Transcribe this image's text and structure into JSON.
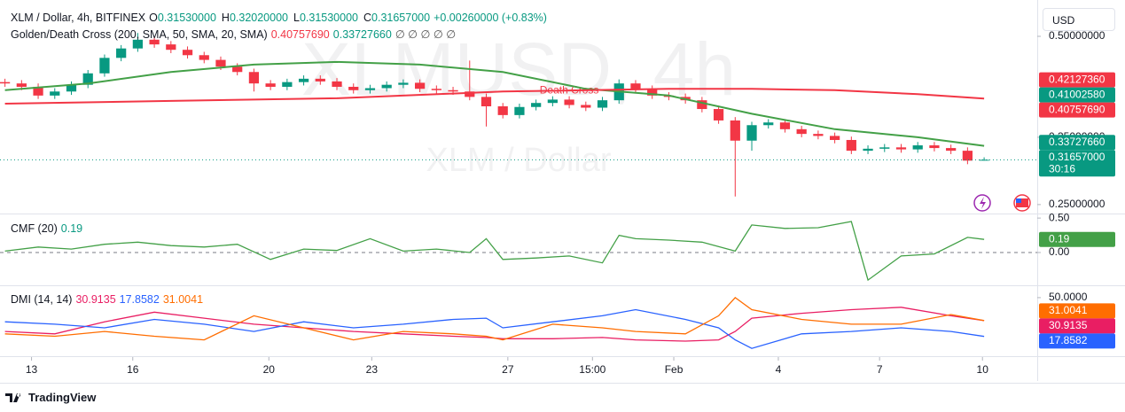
{
  "header": {
    "symbol": "XLM / Dollar, 4h, BITFINEX",
    "ohlc": [
      {
        "key": "O",
        "label": "0.31530000"
      },
      {
        "key": "H",
        "label": "0.32020000"
      },
      {
        "key": "L",
        "label": "0.31530000"
      },
      {
        "key": "C",
        "label": "0.31657000"
      }
    ],
    "change": "+0.00260000 (+0.83%)",
    "currency": "USD",
    "brand": "TradingView"
  },
  "chart_data": [
    {
      "type": "candlestick",
      "title": "Golden/Death Cross (200, SMA, 50, SMA, 20, SMA)",
      "status_icons": "∅ ∅ ∅ ∅ ∅",
      "watermark": "XLMUSD, 4h",
      "watermark_subtitle": "XLM / Dollar",
      "up_color": "#089981",
      "down_color": "#f23645",
      "x": [
        0,
        1,
        2,
        3,
        4,
        5,
        6,
        7,
        8,
        9,
        10,
        11,
        12,
        13,
        14,
        15,
        16,
        17,
        18,
        19,
        20,
        21,
        22,
        23,
        24,
        25,
        26,
        27,
        28,
        29,
        30,
        31,
        32,
        33,
        34,
        35,
        36,
        37,
        38,
        39,
        40,
        41,
        42,
        43,
        44,
        45,
        46,
        47,
        48,
        49,
        50,
        51,
        52,
        53,
        54,
        55,
        56,
        57,
        58,
        59
      ],
      "open": [
        0.432,
        0.43,
        0.425,
        0.412,
        0.418,
        0.428,
        0.445,
        0.468,
        0.482,
        0.495,
        0.488,
        0.48,
        0.472,
        0.465,
        0.455,
        0.447,
        0.43,
        0.425,
        0.432,
        0.437,
        0.433,
        0.425,
        0.42,
        0.423,
        0.428,
        0.431,
        0.422,
        0.42,
        0.418,
        0.41,
        0.396,
        0.383,
        0.395,
        0.401,
        0.406,
        0.398,
        0.394,
        0.405,
        0.43,
        0.422,
        0.412,
        0.41,
        0.405,
        0.392,
        0.375,
        0.345,
        0.368,
        0.372,
        0.362,
        0.355,
        0.352,
        0.346,
        0.33,
        0.333,
        0.335,
        0.332,
        0.338,
        0.334,
        0.33,
        0.3153
      ],
      "high": [
        0.437,
        0.435,
        0.43,
        0.423,
        0.433,
        0.45,
        0.473,
        0.487,
        0.505,
        0.5,
        0.493,
        0.485,
        0.477,
        0.47,
        0.46,
        0.452,
        0.435,
        0.437,
        0.442,
        0.442,
        0.438,
        0.43,
        0.428,
        0.433,
        0.436,
        0.436,
        0.427,
        0.425,
        0.464,
        0.415,
        0.401,
        0.4,
        0.406,
        0.411,
        0.411,
        0.403,
        0.41,
        0.436,
        0.435,
        0.427,
        0.417,
        0.415,
        0.41,
        0.397,
        0.38,
        0.373,
        0.377,
        0.377,
        0.367,
        0.36,
        0.357,
        0.351,
        0.338,
        0.34,
        0.34,
        0.343,
        0.343,
        0.339,
        0.335,
        0.3202
      ],
      "low": [
        0.425,
        0.42,
        0.407,
        0.407,
        0.413,
        0.423,
        0.44,
        0.463,
        0.477,
        0.483,
        0.475,
        0.467,
        0.46,
        0.45,
        0.442,
        0.418,
        0.42,
        0.42,
        0.427,
        0.428,
        0.42,
        0.415,
        0.415,
        0.418,
        0.423,
        0.417,
        0.415,
        0.413,
        0.405,
        0.366,
        0.378,
        0.378,
        0.39,
        0.396,
        0.393,
        0.389,
        0.389,
        0.4,
        0.417,
        0.407,
        0.405,
        0.4,
        0.387,
        0.37,
        0.262,
        0.33,
        0.363,
        0.357,
        0.35,
        0.347,
        0.341,
        0.325,
        0.325,
        0.328,
        0.327,
        0.327,
        0.329,
        0.325,
        0.31,
        0.3153
      ],
      "close": [
        0.43,
        0.425,
        0.412,
        0.418,
        0.428,
        0.445,
        0.468,
        0.482,
        0.495,
        0.488,
        0.48,
        0.472,
        0.465,
        0.455,
        0.447,
        0.43,
        0.425,
        0.432,
        0.437,
        0.433,
        0.425,
        0.42,
        0.423,
        0.428,
        0.431,
        0.422,
        0.42,
        0.418,
        0.41,
        0.396,
        0.383,
        0.395,
        0.401,
        0.406,
        0.398,
        0.394,
        0.405,
        0.43,
        0.422,
        0.412,
        0.41,
        0.405,
        0.392,
        0.375,
        0.345,
        0.368,
        0.372,
        0.362,
        0.355,
        0.352,
        0.346,
        0.33,
        0.333,
        0.335,
        0.332,
        0.338,
        0.334,
        0.33,
        0.3153,
        0.31657
      ],
      "series": [
        {
          "color": "#43a047",
          "x": [
            0,
            5,
            10,
            15,
            20,
            25,
            30,
            35,
            40,
            45,
            50,
            55,
            59
          ],
          "values": [
            0.42,
            0.43,
            0.447,
            0.458,
            0.462,
            0.458,
            0.447,
            0.422,
            0.412,
            0.385,
            0.362,
            0.35,
            0.3372766
          ]
        },
        {
          "color": "#f23645",
          "x": [
            0,
            10,
            20,
            30,
            40,
            45,
            50,
            55,
            59
          ],
          "values": [
            0.4,
            0.404,
            0.408,
            0.418,
            0.422,
            0.422,
            0.42,
            0.414,
            0.4075769
          ]
        }
      ],
      "annotations": [
        {
          "text": "Death Cross",
          "x": 34,
          "y": 0.419,
          "color": "#f23645"
        }
      ],
      "price_labels": [
        {
          "value": 0.4212736,
          "label": "0.42127360",
          "color": "#f23645"
        },
        {
          "value": 0.4100258,
          "label": "0.41002580",
          "color": "#089981"
        },
        {
          "value": 0.4075769,
          "label": "0.40757690",
          "color": "#f23645"
        },
        {
          "value": 0.3372766,
          "label": "0.33727660",
          "color": "#089981"
        },
        {
          "value": 0.31657,
          "label": "0.31657000",
          "color": "#089981",
          "countdown": "30:16"
        }
      ],
      "xlim": [
        -0.3,
        62.2
      ],
      "xticks": [
        {
          "value": 1.6,
          "label": "13"
        },
        {
          "value": 7.7,
          "label": "16"
        },
        {
          "value": 15.9,
          "label": "20"
        },
        {
          "value": 22.1,
          "label": "23"
        },
        {
          "value": 30.3,
          "label": "27"
        },
        {
          "value": 35.4,
          "label": "15:00"
        },
        {
          "value": 40.3,
          "label": "Feb"
        },
        {
          "value": 46.6,
          "label": "4"
        },
        {
          "value": 52.7,
          "label": "7"
        },
        {
          "value": 58.9,
          "label": "10"
        }
      ],
      "ylim": [
        0.238,
        0.554
      ],
      "yticks": [
        {
          "value": 0.5,
          "label": "0.50000000"
        },
        {
          "value": 0.35,
          "label": "0.35000000"
        },
        {
          "value": 0.25,
          "label": "0.25000000"
        }
      ]
    },
    {
      "type": "line",
      "title": "CMF (20)",
      "baseline": 0,
      "series": [
        {
          "color": "#43a047",
          "x": [
            0,
            2,
            4,
            6,
            8,
            10,
            12,
            14,
            16,
            18,
            20,
            22,
            24,
            26,
            28,
            29,
            30,
            32,
            34,
            36,
            37,
            38,
            40,
            42,
            44,
            45,
            47,
            49,
            51,
            52,
            54,
            56,
            58,
            59
          ],
          "values": [
            0.02,
            0.08,
            0.05,
            0.12,
            0.15,
            0.1,
            0.08,
            0.12,
            -0.1,
            0.05,
            0.03,
            0.2,
            0.02,
            0.05,
            0.0,
            0.2,
            -0.1,
            -0.08,
            -0.05,
            -0.15,
            0.25,
            0.2,
            0.18,
            0.15,
            0.02,
            0.4,
            0.35,
            0.36,
            0.45,
            -0.4,
            -0.05,
            -0.02,
            0.22,
            0.19
          ]
        }
      ],
      "xlim": [
        -0.3,
        62.2
      ],
      "ylim": [
        -0.45,
        0.54
      ],
      "yticks": [
        {
          "value": 0.5,
          "label": "0.50"
        },
        {
          "value": 0,
          "label": "0.00"
        }
      ]
    },
    {
      "type": "line",
      "title": "DMI (14, 14)",
      "series": [
        {
          "color": "#e91e63",
          "x": [
            0,
            3,
            6,
            9,
            12,
            15,
            18,
            21,
            24,
            27,
            29,
            30,
            33,
            36,
            38,
            41,
            43,
            44,
            45,
            48,
            51,
            54,
            57,
            59
          ],
          "values": [
            22,
            20,
            30,
            38,
            33,
            28,
            25,
            22,
            20,
            18,
            17,
            16,
            16,
            17,
            15,
            14,
            15,
            22,
            33,
            37,
            40,
            42,
            35,
            30.9135
          ]
        },
        {
          "color": "#2962ff",
          "x": [
            0,
            3,
            6,
            9,
            12,
            15,
            18,
            21,
            24,
            27,
            29,
            30,
            33,
            36,
            38,
            41,
            43,
            44,
            45,
            48,
            51,
            54,
            57,
            59
          ],
          "values": [
            30,
            28,
            25,
            32,
            28,
            22,
            30,
            25,
            28,
            32,
            33,
            25,
            30,
            35,
            40,
            32,
            25,
            15,
            8,
            20,
            22,
            25,
            22,
            17.8582
          ]
        },
        {
          "color": "#ff6d00",
          "x": [
            0,
            3,
            6,
            9,
            12,
            15,
            18,
            21,
            24,
            27,
            29,
            30,
            33,
            36,
            38,
            41,
            43,
            44,
            45,
            48,
            51,
            54,
            57,
            59
          ],
          "values": [
            20,
            18,
            22,
            18,
            15,
            35,
            25,
            15,
            22,
            20,
            18,
            15,
            28,
            25,
            22,
            20,
            35,
            50,
            40,
            32,
            28,
            28,
            36,
            31.0041
          ]
        }
      ],
      "xlim": [
        -0.3,
        62.2
      ],
      "ylim": [
        3,
        58
      ],
      "yticks": [
        {
          "value": 50,
          "label": "50.0000"
        }
      ]
    }
  ]
}
